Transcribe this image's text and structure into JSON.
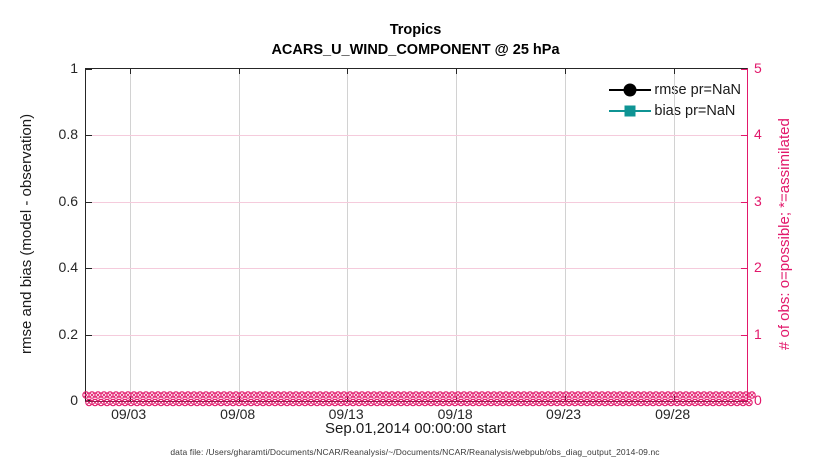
{
  "figure": {
    "caption": "data file: /Users/gharamti/Documents/NCAR/Reanalysis/~/Documents/NCAR/Reanalysis/webpub/obs_diag_output_2014-09.nc"
  },
  "colors": {
    "accent_pink": "#e2186b",
    "teal": "#0f9494",
    "axis_dark": "#262626",
    "grid_vertical": "#d2d2d2",
    "grid_horizontal": "#f5cbdc",
    "rmse_black": "#000000"
  },
  "legend": {
    "items": [
      {
        "label": "rmse pr=NaN",
        "color": "#000000",
        "marker": "circle"
      },
      {
        "label": "bias pr=NaN",
        "color": "#0f9494",
        "marker": "square"
      }
    ]
  },
  "chart_data": {
    "type": "line",
    "title": "Tropics",
    "subtitle": "ACARS_U_WIND_COMPONENT @ 25 hPa",
    "xlabel": "Sep.01,2014 00:00:00 start",
    "x_ticks": [
      "09/03",
      "09/08",
      "09/13",
      "09/18",
      "09/23",
      "09/28"
    ],
    "x_tick_positions_pct": [
      6.6,
      23.1,
      39.5,
      56.0,
      72.4,
      88.9
    ],
    "left_axis": {
      "label": "rmse and bias (model - observation)",
      "ticks": [
        "0",
        "0.2",
        "0.4",
        "0.6",
        "0.8",
        "1"
      ],
      "min": 0,
      "max": 1
    },
    "right_axis": {
      "label": "# of obs: o=possible; *=assimilated",
      "ticks": [
        "0",
        "1",
        "2",
        "3",
        "4",
        "5"
      ],
      "min": 0,
      "max": 5
    },
    "series": [
      {
        "name": "rmse pr=NaN",
        "marker": "circle",
        "color": "#000000",
        "values": "NaN (no curve plotted)"
      },
      {
        "name": "bias pr=NaN",
        "marker": "square",
        "color": "#0f9494",
        "values": "NaN (no curve plotted)"
      },
      {
        "name": "# of obs possible (o markers)",
        "color": "#e2186b",
        "constant_value": 0
      },
      {
        "name": "# of obs assimilated (* markers)",
        "color": "#e2186b",
        "constant_value": 0
      }
    ],
    "obs_marker_band": {
      "value": 0,
      "rows": 2,
      "markers_per_row": 112
    },
    "grid": true,
    "legend_position": "top-right-inside"
  }
}
